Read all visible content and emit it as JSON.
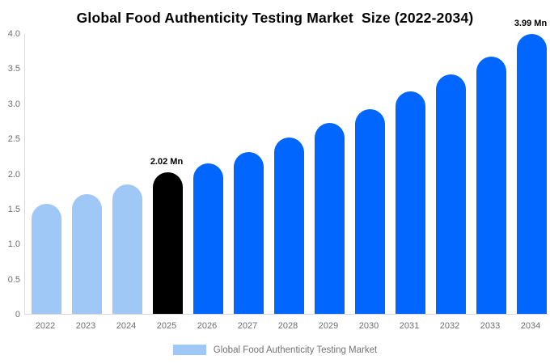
{
  "title": "Global Food Authenticity Testing Market  Size (2022-2034)",
  "chart_data": {
    "type": "bar",
    "title": "Global Food Authenticity Testing Market  Size (2022-2034)",
    "unit": "Mn",
    "categories": [
      "2022",
      "2023",
      "2024",
      "2025",
      "2026",
      "2027",
      "2028",
      "2029",
      "2030",
      "2031",
      "2032",
      "2033",
      "2034"
    ],
    "values": [
      1.57,
      1.71,
      1.85,
      2.02,
      2.15,
      2.31,
      2.51,
      2.72,
      2.92,
      3.17,
      3.41,
      3.67,
      3.99
    ],
    "bar_color_keys": [
      "light",
      "light",
      "light",
      "black",
      "blue",
      "blue",
      "blue",
      "blue",
      "blue",
      "blue",
      "blue",
      "blue",
      "blue"
    ],
    "colors": {
      "light": "#9fc8f6",
      "black": "#000000",
      "blue": "#0066fe",
      "axis_line": "#d9d9d9",
      "tick_text": "#6e6e6e",
      "legend_text": "#737373"
    },
    "annotations": [
      {
        "index": 3,
        "text": "2.02 Mn"
      },
      {
        "index": 12,
        "text": "3.99 Mn"
      }
    ],
    "xlabel": "",
    "ylabel": "",
    "ylim": [
      0,
      4.0
    ],
    "yticks": [
      "0",
      "0.5",
      "1.0",
      "1.5",
      "2.0",
      "2.5",
      "3.0",
      "3.5",
      "4.0"
    ],
    "grid": false,
    "legend": {
      "position": "bottom-center",
      "label": "Global Food Authenticity Testing Market",
      "swatch_color": "#9fc8f6"
    }
  }
}
